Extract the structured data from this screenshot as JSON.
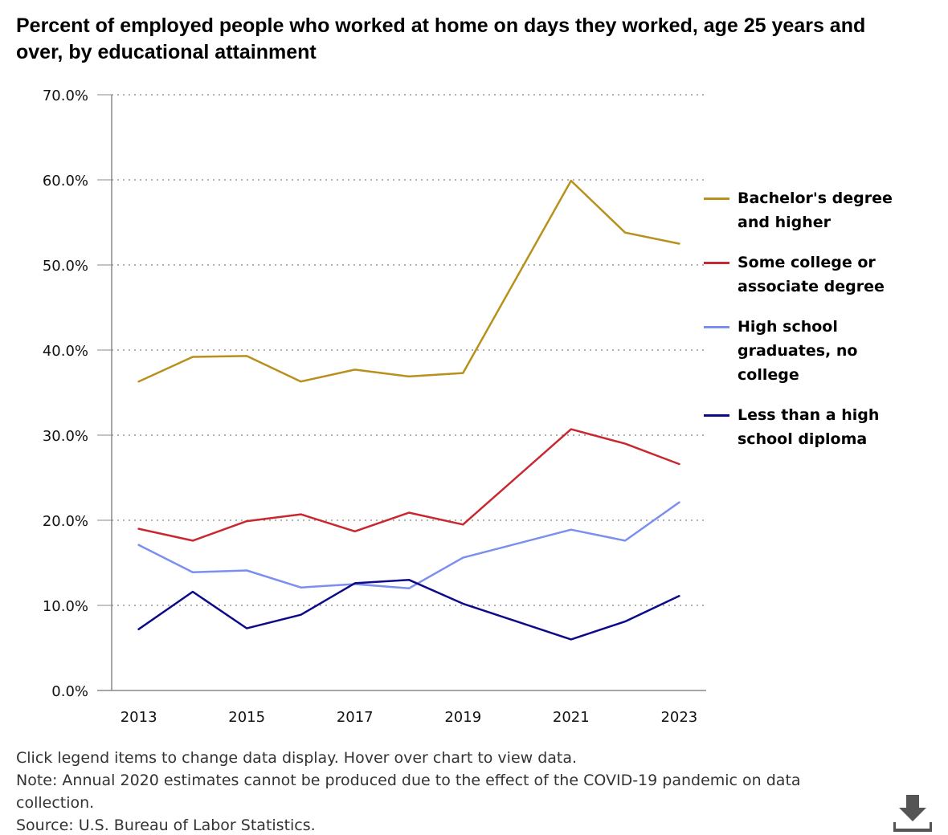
{
  "chart_data": {
    "type": "line",
    "title": "Percent of employed people who worked at home on days they worked, age 25 years and over, by educational attainment",
    "xlabel": "",
    "ylabel": "",
    "ylim": [
      0,
      70
    ],
    "yticks": [
      0,
      10,
      20,
      30,
      40,
      50,
      60,
      70
    ],
    "ytick_labels": [
      "0.0%",
      "10.0%",
      "20.0%",
      "30.0%",
      "40.0%",
      "50.0%",
      "60.0%",
      "70.0%"
    ],
    "xlim": [
      2012.5,
      2023.5
    ],
    "xticks": [
      2013,
      2015,
      2017,
      2019,
      2021,
      2023
    ],
    "xtick_labels": [
      "2013",
      "2015",
      "2017",
      "2019",
      "2021",
      "2023"
    ],
    "grid": "horizontal dotted",
    "legend_position": "right",
    "x": [
      2013,
      2014,
      2015,
      2016,
      2017,
      2018,
      2019,
      2021,
      2022,
      2023
    ],
    "series": [
      {
        "name": "Bachelor's degree and higher",
        "color": "#b8901c",
        "values": [
          36.3,
          39.2,
          39.3,
          36.3,
          37.7,
          36.9,
          37.3,
          59.9,
          53.8,
          52.5
        ]
      },
      {
        "name": "Some college or associate degree",
        "color": "#c8282f",
        "values": [
          19.0,
          17.6,
          19.9,
          20.7,
          18.7,
          20.9,
          19.5,
          30.7,
          29.0,
          26.6
        ]
      },
      {
        "name": "High school graduates, no college",
        "color": "#7b8fef",
        "values": [
          17.1,
          13.9,
          14.1,
          12.1,
          12.5,
          12.0,
          15.6,
          18.9,
          17.6,
          22.1
        ]
      },
      {
        "name": "Less than a high school diploma",
        "color": "#0d0a8a",
        "values": [
          7.2,
          11.6,
          7.3,
          8.9,
          12.6,
          13.0,
          10.2,
          6.0,
          8.1,
          11.1
        ]
      }
    ]
  },
  "notes": {
    "instruction": "Click legend items to change data display. Hover over chart to view data.",
    "note": "Note: Annual 2020 estimates cannot be produced due to the effect of the COVID-19 pandemic on data collection.",
    "source": "Source: U.S. Bureau of Labor Statistics."
  },
  "download": {
    "icon": "download-icon"
  }
}
